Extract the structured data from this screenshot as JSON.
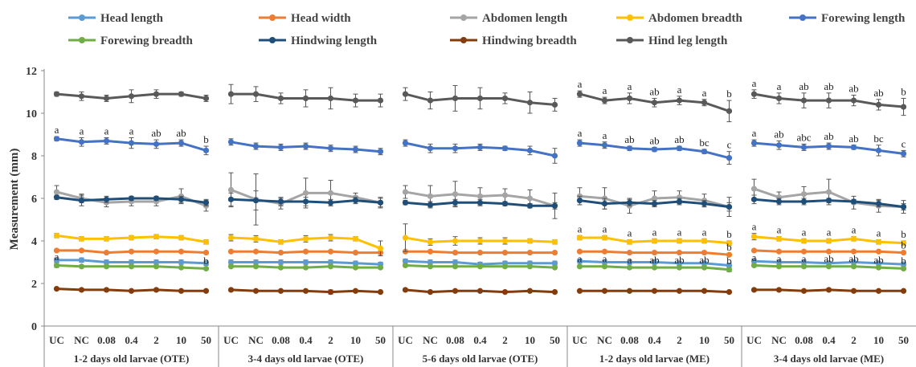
{
  "chart_data": {
    "type": "line",
    "title": "",
    "ylabel": "Measurement (mm)",
    "ylim": [
      0,
      12
    ],
    "yticks": [
      0,
      2,
      4,
      6,
      8,
      10,
      12
    ],
    "legend_position": "top",
    "categories": [
      "UC",
      "NC",
      "0.08",
      "0.4",
      "2",
      "10",
      "50",
      "UC",
      "NC",
      "0.08",
      "0.4",
      "2",
      "10",
      "50",
      "UC",
      "NC",
      "0.08",
      "0.4",
      "2",
      "10",
      "50",
      "UC",
      "NC",
      "0.08",
      "0.4",
      "2",
      "10",
      "50",
      "UC",
      "NC",
      "0.08",
      "0.4",
      "2",
      "10",
      "50"
    ],
    "groups": [
      {
        "label": "1-2 days old larvae (OTE)",
        "count": 7
      },
      {
        "label": "3-4 days old larvae (OTE)",
        "count": 7
      },
      {
        "label": "5-6 days old larvae (OTE)",
        "count": 7
      },
      {
        "label": "1-2 days old larvae (ME)",
        "count": 7
      },
      {
        "label": "3-4 days old larvae (ME)",
        "count": 7
      }
    ],
    "series": [
      {
        "name": "Head length",
        "color": "#5B9BD5",
        "values": [
          3.1,
          3.1,
          3.0,
          3.0,
          3.0,
          3.0,
          2.95,
          3.0,
          3.0,
          3.0,
          3.0,
          3.0,
          2.95,
          2.9,
          3.05,
          3.0,
          3.0,
          2.9,
          2.95,
          2.95,
          2.95,
          3.05,
          3.0,
          3.0,
          3.0,
          2.95,
          2.95,
          2.85,
          3.05,
          3.0,
          3.0,
          2.95,
          3.0,
          2.95,
          2.9
        ],
        "errors": [
          0.1,
          0.1,
          0.1,
          0.1,
          0.1,
          0.1,
          0.1,
          0.1,
          0.1,
          0.1,
          0.1,
          0.1,
          0.1,
          0.1,
          0.1,
          0.1,
          0.1,
          0.1,
          0.1,
          0.1,
          0.1,
          0.1,
          0.1,
          0.1,
          0.1,
          0.1,
          0.1,
          0.1,
          0.1,
          0.1,
          0.1,
          0.1,
          0.1,
          0.1,
          0.1
        ]
      },
      {
        "name": "Head width",
        "color": "#ED7D31",
        "values": [
          3.55,
          3.55,
          3.45,
          3.5,
          3.5,
          3.5,
          3.45,
          3.5,
          3.5,
          3.45,
          3.5,
          3.5,
          3.45,
          3.45,
          3.5,
          3.5,
          3.45,
          3.45,
          3.45,
          3.45,
          3.45,
          3.5,
          3.5,
          3.45,
          3.45,
          3.45,
          3.45,
          3.35,
          3.55,
          3.5,
          3.5,
          3.5,
          3.5,
          3.5,
          3.45
        ],
        "errors": [
          0.05,
          0.05,
          0.05,
          0.05,
          0.05,
          0.05,
          0.05,
          0.05,
          0.05,
          0.05,
          0.05,
          0.05,
          0.05,
          0.05,
          0.05,
          0.05,
          0.05,
          0.05,
          0.05,
          0.05,
          0.05,
          0.05,
          0.05,
          0.05,
          0.05,
          0.05,
          0.05,
          0.05,
          0.05,
          0.05,
          0.05,
          0.05,
          0.05,
          0.05,
          0.05
        ]
      },
      {
        "name": "Abdomen length",
        "color": "#A5A5A5",
        "values": [
          6.3,
          6.0,
          5.8,
          5.85,
          5.85,
          6.1,
          5.65,
          6.4,
          5.95,
          5.75,
          6.25,
          6.25,
          6.05,
          5.8,
          6.3,
          6.1,
          6.2,
          6.1,
          6.15,
          6.0,
          5.65,
          6.1,
          6.0,
          5.65,
          6.0,
          6.05,
          5.9,
          5.6,
          6.45,
          6.05,
          6.2,
          6.3,
          5.8,
          5.65,
          5.6
        ],
        "errors": [
          0.3,
          0.2,
          0.2,
          0.2,
          0.2,
          0.35,
          0.25,
          0.8,
          1.2,
          0.25,
          0.7,
          0.6,
          0.2,
          0.25,
          0.3,
          0.5,
          0.6,
          0.4,
          0.3,
          0.4,
          0.6,
          0.4,
          0.5,
          0.35,
          0.35,
          0.3,
          0.3,
          0.45,
          0.45,
          0.25,
          0.35,
          0.6,
          0.3,
          0.3,
          0.3
        ]
      },
      {
        "name": "Abdomen breadth",
        "color": "#FFC000",
        "values": [
          4.25,
          4.1,
          4.1,
          4.15,
          4.2,
          4.15,
          3.95,
          4.15,
          4.1,
          3.95,
          4.1,
          4.15,
          4.1,
          3.65,
          4.15,
          3.95,
          4.0,
          4.0,
          4.0,
          4.0,
          3.95,
          4.15,
          4.15,
          3.95,
          4.0,
          4.0,
          4.0,
          3.9,
          4.2,
          4.1,
          4.0,
          4.0,
          4.1,
          3.95,
          3.9
        ],
        "errors": [
          0.1,
          0.1,
          0.1,
          0.1,
          0.1,
          0.1,
          0.1,
          0.15,
          0.15,
          0.1,
          0.15,
          0.15,
          0.1,
          0.35,
          0.65,
          0.15,
          0.2,
          0.15,
          0.15,
          0.1,
          0.1,
          0.1,
          0.1,
          0.1,
          0.1,
          0.1,
          0.1,
          0.1,
          0.15,
          0.1,
          0.1,
          0.1,
          0.1,
          0.1,
          0.1
        ]
      },
      {
        "name": "Forewing length",
        "color": "#4472C4",
        "values": [
          8.8,
          8.65,
          8.7,
          8.6,
          8.55,
          8.6,
          8.25,
          8.65,
          8.45,
          8.4,
          8.45,
          8.35,
          8.3,
          8.2,
          8.6,
          8.35,
          8.35,
          8.4,
          8.35,
          8.25,
          8.0,
          8.6,
          8.5,
          8.35,
          8.3,
          8.35,
          8.2,
          7.9,
          8.6,
          8.5,
          8.4,
          8.45,
          8.4,
          8.25,
          8.1
        ],
        "errors": [
          0.1,
          0.2,
          0.15,
          0.25,
          0.2,
          0.15,
          0.2,
          0.15,
          0.15,
          0.15,
          0.15,
          0.15,
          0.15,
          0.15,
          0.15,
          0.2,
          0.2,
          0.15,
          0.1,
          0.2,
          0.35,
          0.15,
          0.15,
          0.1,
          0.1,
          0.1,
          0.1,
          0.3,
          0.15,
          0.2,
          0.15,
          0.15,
          0.1,
          0.25,
          0.15
        ]
      },
      {
        "name": "Forewing breadth",
        "color": "#70AD47",
        "values": [
          2.85,
          2.8,
          2.8,
          2.8,
          2.8,
          2.75,
          2.7,
          2.8,
          2.8,
          2.75,
          2.75,
          2.8,
          2.75,
          2.75,
          2.85,
          2.8,
          2.8,
          2.8,
          2.8,
          2.8,
          2.75,
          2.8,
          2.8,
          2.75,
          2.75,
          2.75,
          2.75,
          2.65,
          2.85,
          2.8,
          2.8,
          2.8,
          2.8,
          2.75,
          2.7
        ],
        "errors": [
          0.1,
          0.05,
          0.05,
          0.05,
          0.05,
          0.05,
          0.05,
          0.05,
          0.05,
          0.05,
          0.05,
          0.05,
          0.05,
          0.05,
          0.05,
          0.05,
          0.05,
          0.05,
          0.05,
          0.05,
          0.05,
          0.05,
          0.05,
          0.05,
          0.05,
          0.05,
          0.05,
          0.1,
          0.05,
          0.05,
          0.05,
          0.05,
          0.05,
          0.05,
          0.05
        ]
      },
      {
        "name": "Hindwing length",
        "color": "#1F4E79",
        "values": [
          6.05,
          5.9,
          5.95,
          6.0,
          6.0,
          5.95,
          5.8,
          5.95,
          5.9,
          5.85,
          5.85,
          5.8,
          5.9,
          5.8,
          5.8,
          5.7,
          5.8,
          5.8,
          5.75,
          5.65,
          5.65,
          5.9,
          5.75,
          5.8,
          5.75,
          5.85,
          5.75,
          5.6,
          5.95,
          5.85,
          5.85,
          5.9,
          5.85,
          5.75,
          5.6
        ],
        "errors": [
          0.1,
          0.25,
          0.15,
          0.1,
          0.1,
          0.15,
          0.15,
          0.3,
          0.45,
          0.2,
          0.2,
          0.15,
          0.15,
          0.2,
          0.1,
          0.15,
          0.15,
          0.15,
          0.1,
          0.1,
          0.15,
          0.2,
          0.25,
          0.15,
          0.15,
          0.15,
          0.15,
          0.2,
          0.2,
          0.15,
          0.15,
          0.1,
          0.1,
          0.15,
          0.15
        ]
      },
      {
        "name": "Hindwing breadth",
        "color": "#843C0C",
        "values": [
          1.75,
          1.7,
          1.7,
          1.65,
          1.7,
          1.65,
          1.65,
          1.7,
          1.65,
          1.65,
          1.65,
          1.6,
          1.65,
          1.6,
          1.7,
          1.6,
          1.65,
          1.65,
          1.6,
          1.65,
          1.6,
          1.65,
          1.65,
          1.65,
          1.65,
          1.65,
          1.65,
          1.6,
          1.7,
          1.7,
          1.65,
          1.7,
          1.65,
          1.65,
          1.65
        ],
        "errors": [
          0.05,
          0.05,
          0.05,
          0.05,
          0.05,
          0.05,
          0.05,
          0.05,
          0.05,
          0.05,
          0.05,
          0.1,
          0.05,
          0.05,
          0.05,
          0.05,
          0.05,
          0.05,
          0.05,
          0.05,
          0.05,
          0.05,
          0.05,
          0.05,
          0.05,
          0.05,
          0.05,
          0.05,
          0.05,
          0.05,
          0.05,
          0.05,
          0.05,
          0.05,
          0.05
        ]
      },
      {
        "name": "Hind leg length",
        "color": "#595959",
        "values": [
          10.9,
          10.8,
          10.7,
          10.8,
          10.9,
          10.9,
          10.7,
          10.9,
          10.9,
          10.7,
          10.7,
          10.7,
          10.6,
          10.6,
          10.9,
          10.6,
          10.7,
          10.7,
          10.7,
          10.5,
          10.4,
          10.9,
          10.6,
          10.7,
          10.5,
          10.6,
          10.5,
          10.1,
          10.9,
          10.7,
          10.6,
          10.6,
          10.6,
          10.4,
          10.3
        ],
        "errors": [
          0.1,
          0.2,
          0.15,
          0.3,
          0.2,
          0.1,
          0.15,
          0.45,
          0.35,
          0.25,
          0.4,
          0.5,
          0.3,
          0.3,
          0.3,
          0.4,
          0.6,
          0.5,
          0.25,
          0.5,
          0.3,
          0.15,
          0.15,
          0.25,
          0.2,
          0.2,
          0.15,
          0.5,
          0.2,
          0.25,
          0.35,
          0.35,
          0.25,
          0.25,
          0.4
        ]
      }
    ],
    "annotations": {
      "Hind leg length": {
        "21": "a",
        "22": "a",
        "23": "a",
        "24": "ab",
        "25": "a",
        "26": "a",
        "27": "b",
        "28": "a",
        "29": "a",
        "30": "ab",
        "31": "ab",
        "32": "ab",
        "33": "ab",
        "34": "b"
      },
      "Forewing length": {
        "0": "a",
        "1": "a",
        "2": "a",
        "3": "a",
        "4": "ab",
        "5": "ab",
        "6": "b",
        "21": "a",
        "22": "a",
        "23": "ab",
        "24": "ab",
        "25": "ab",
        "26": "bc",
        "27": "c",
        "28": "a",
        "29": "ab",
        "30": "abc",
        "31": "ab",
        "32": "ab",
        "33": "bc",
        "34": "c"
      },
      "Abdomen breadth": {
        "21": "a",
        "22": "a",
        "23": "a",
        "24": "a",
        "25": "a",
        "26": "a",
        "27": "b",
        "28": "a",
        "29": "a",
        "30": "a",
        "31": "a",
        "32": "a",
        "33": "a",
        "34": "b"
      },
      "Head width": {
        "27": "b",
        "34": "b"
      },
      "Forewing breadth": {
        "0": "a",
        "6": "b",
        "21": "a",
        "22": "a",
        "23": "a",
        "24": "ab",
        "25": "ab",
        "26": "ab",
        "27": "b",
        "28": "a",
        "29": "a",
        "30": "a",
        "31": "ab",
        "32": "ab",
        "33": "ab",
        "34": "b"
      }
    }
  }
}
